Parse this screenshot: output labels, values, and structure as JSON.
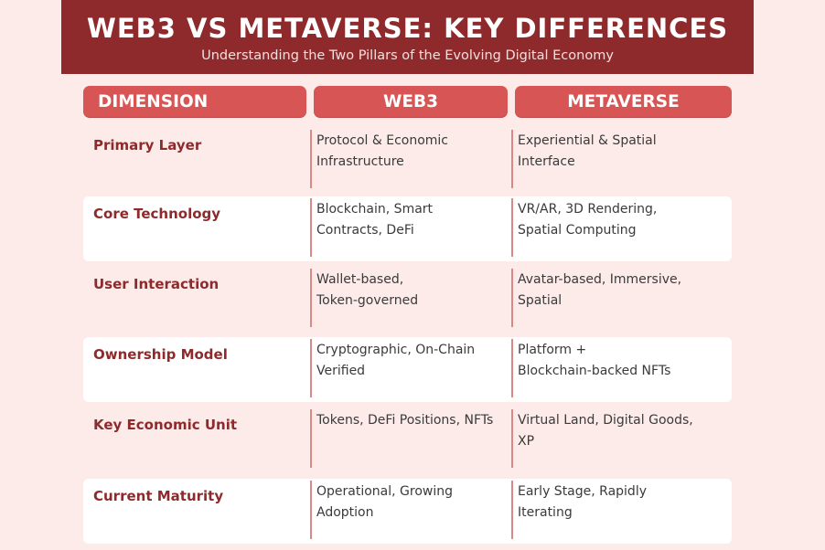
{
  "header": {
    "title": "WEB3 VS METAVERSE: KEY DIFFERENCES",
    "subtitle": "Understanding the Two Pillars of the Evolving Digital Economy"
  },
  "columns": [
    "DIMENSION",
    "WEB3",
    "METAVERSE"
  ],
  "rows": [
    {
      "dimension": "Primary Layer",
      "web3": [
        "Protocol & Economic",
        "Infrastructure"
      ],
      "metaverse": [
        "Experiential & Spatial",
        "Interface"
      ]
    },
    {
      "dimension": "Core Technology",
      "web3": [
        "Blockchain, Smart",
        "Contracts, DeFi"
      ],
      "metaverse": [
        "VR/AR, 3D Rendering,",
        "Spatial Computing"
      ]
    },
    {
      "dimension": "User Interaction",
      "web3": [
        "Wallet-based,",
        "Token-governed"
      ],
      "metaverse": [
        "Avatar-based, Immersive,",
        "Spatial"
      ]
    },
    {
      "dimension": "Ownership Model",
      "web3": [
        "Cryptographic, On-Chain",
        "Verified"
      ],
      "metaverse": [
        "Platform +",
        "Blockchain-backed NFTs"
      ]
    },
    {
      "dimension": "Key Economic Unit",
      "web3": [
        "Tokens, DeFi Positions, NFTs",
        ""
      ],
      "metaverse": [
        "Virtual Land, Digital Goods,",
        "XP"
      ]
    },
    {
      "dimension": "Current Maturity",
      "web3": [
        "Operational, Growing",
        "Adoption"
      ],
      "metaverse": [
        "Early Stage, Rapidly",
        "Iterating"
      ]
    }
  ],
  "colors": {
    "banner": "#8e2a2c",
    "header_cell": "#d85555",
    "background": "#fdebea",
    "label_text": "#8e2a2c",
    "separator": "#d98888"
  }
}
